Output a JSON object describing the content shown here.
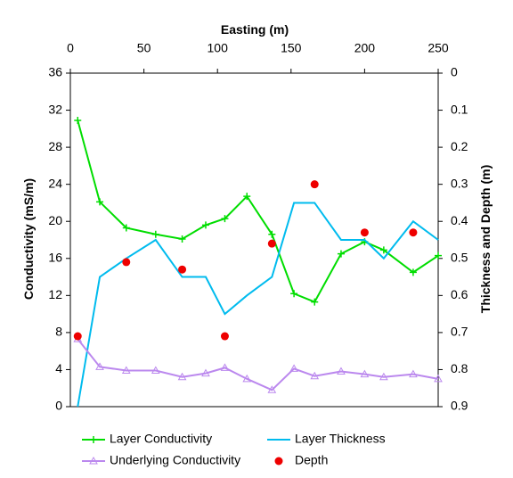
{
  "chart_data": {
    "type": "line",
    "x_axis": {
      "label": "Easting (m)",
      "range": [
        0,
        250
      ],
      "ticks": [
        0,
        50,
        100,
        150,
        200,
        250
      ]
    },
    "y_axis_left": {
      "label": "Conductivity (mS/m)",
      "range": [
        0,
        36
      ],
      "ticks": [
        0,
        4,
        8,
        12,
        16,
        20,
        24,
        28,
        32,
        36
      ]
    },
    "y_axis_right": {
      "label": "Thickness and Depth (m)",
      "range": [
        0,
        0.9
      ],
      "inverted": true,
      "ticks": [
        0,
        0.1,
        0.2,
        0.3,
        0.4,
        0.5,
        0.6,
        0.7,
        0.8,
        0.9
      ],
      "tick_labels": [
        "0",
        "0.1",
        "0.2",
        "0.3",
        "0.4",
        "0.5",
        "0.6",
        "0.7",
        "0.8",
        "0.9"
      ]
    },
    "grid": false,
    "legend_position": "bottom",
    "series": [
      {
        "name": "Layer Conductivity",
        "axis": "left",
        "color": "#00dd00",
        "marker": "plus",
        "line": true,
        "x": [
          5,
          20,
          38,
          58,
          76,
          92,
          105,
          120,
          137,
          152,
          166,
          184,
          200,
          213,
          233,
          250
        ],
        "y": [
          30.9,
          22.1,
          19.3,
          18.6,
          18.1,
          19.6,
          20.3,
          22.7,
          18.6,
          12.2,
          11.3,
          16.5,
          17.8,
          16.9,
          14.5,
          16.3
        ]
      },
      {
        "name": "Layer Thickness",
        "axis": "right",
        "color": "#00bbee",
        "marker": "none",
        "line": true,
        "x": [
          5,
          20,
          38,
          58,
          76,
          92,
          105,
          120,
          137,
          152,
          166,
          184,
          200,
          213,
          233,
          250
        ],
        "y": [
          0.9,
          0.55,
          0.5,
          0.45,
          0.55,
          0.55,
          0.65,
          0.6,
          0.55,
          0.35,
          0.35,
          0.45,
          0.45,
          0.5,
          0.4,
          0.45
        ]
      },
      {
        "name": "Underlying Conductivity",
        "axis": "left",
        "color": "#bb88ee",
        "marker": "triangle",
        "line": true,
        "x": [
          5,
          20,
          38,
          58,
          76,
          92,
          105,
          120,
          137,
          152,
          166,
          184,
          200,
          213,
          233,
          250
        ],
        "y": [
          7.3,
          4.3,
          3.9,
          3.9,
          3.2,
          3.6,
          4.2,
          3.0,
          1.8,
          4.1,
          3.3,
          3.8,
          3.5,
          3.2,
          3.5,
          3.0
        ]
      },
      {
        "name": "Depth",
        "axis": "right",
        "color": "#ee0000",
        "marker": "circle",
        "line": false,
        "x": [
          5,
          38,
          76,
          105,
          137,
          166,
          200,
          233
        ],
        "y": [
          0.71,
          0.51,
          0.53,
          0.71,
          0.46,
          0.3,
          0.43,
          0.43
        ]
      }
    ]
  }
}
